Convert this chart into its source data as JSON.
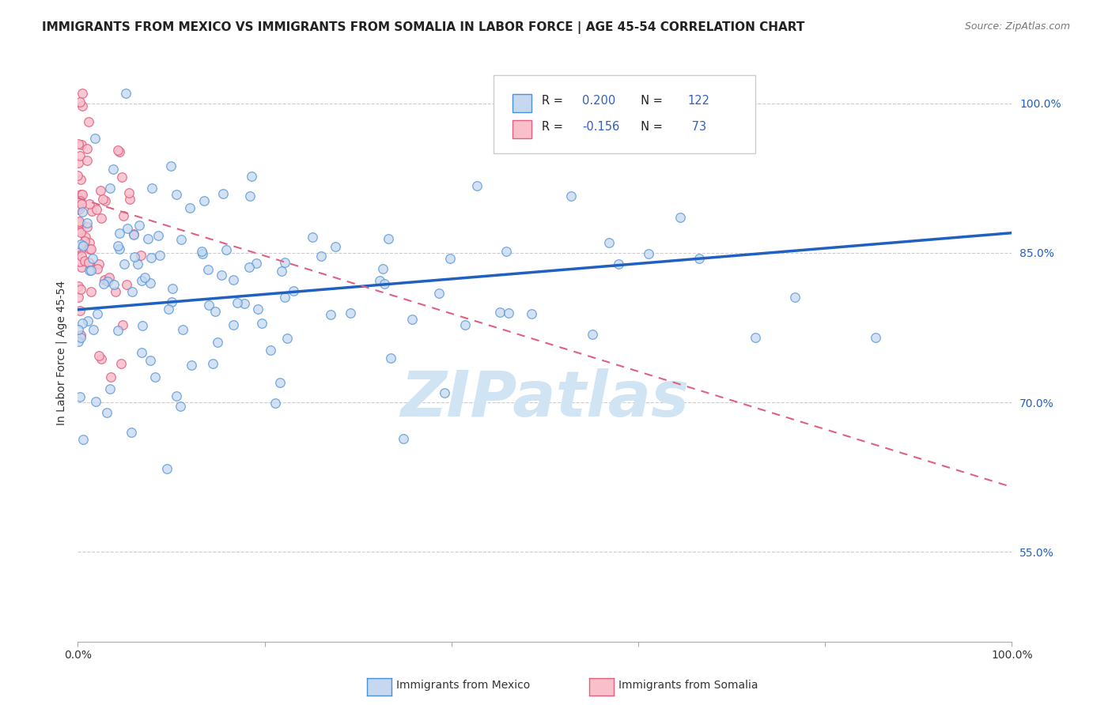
{
  "title": "IMMIGRANTS FROM MEXICO VS IMMIGRANTS FROM SOMALIA IN LABOR FORCE | AGE 45-54 CORRELATION CHART",
  "source": "Source: ZipAtlas.com",
  "ylabel": "In Labor Force | Age 45-54",
  "ytick_labels": [
    "55.0%",
    "70.0%",
    "85.0%",
    "100.0%"
  ],
  "ytick_values": [
    0.55,
    0.7,
    0.85,
    1.0
  ],
  "xlim": [
    0.0,
    1.0
  ],
  "ylim": [
    0.46,
    1.04
  ],
  "R_mexico": 0.2,
  "N_mexico": 122,
  "R_somalia": -0.156,
  "N_somalia": 73,
  "color_mexico_face": "#c5d8f0",
  "color_mexico_edge": "#4a90d9",
  "color_somalia_face": "#f9c0cc",
  "color_somalia_edge": "#e06080",
  "line_color_mexico": "#2060c0",
  "line_color_somalia": "#e06080",
  "legend_color": "#3060c0",
  "background_color": "#ffffff",
  "watermark_color": "#d0e4f4",
  "title_fontsize": 11,
  "source_fontsize": 9,
  "axis_label_color": "#2060c0"
}
